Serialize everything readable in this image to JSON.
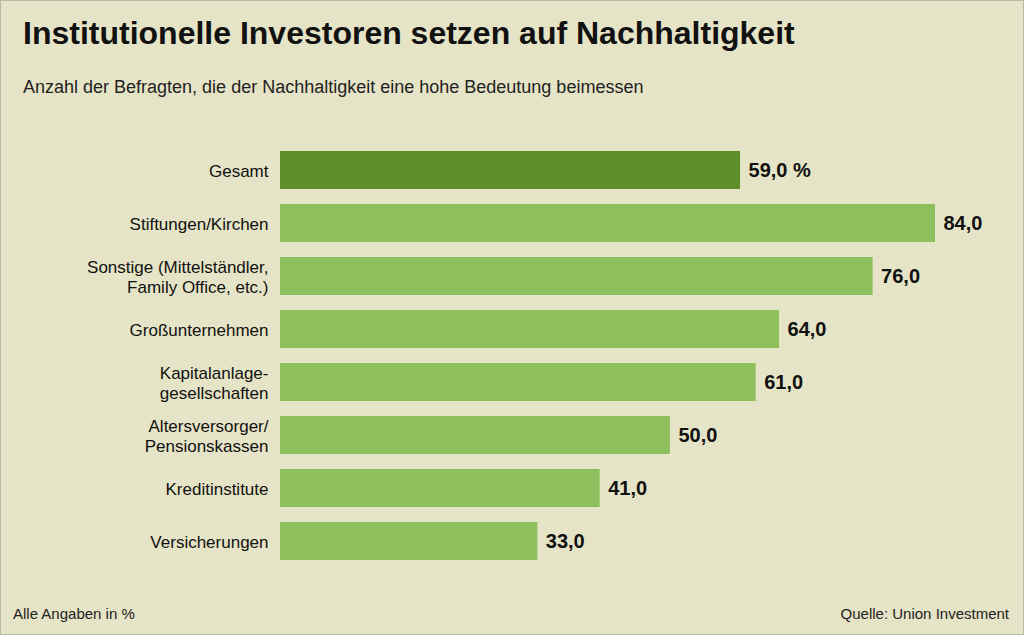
{
  "chart_data": {
    "type": "bar",
    "orientation": "horizontal",
    "title": "Institutionelle Investoren setzen auf Nachhaltigkeit",
    "subtitle": "Anzahl der Befragten, die der Nachhaltigkeit eine hohe Bedeutung beimessen",
    "categories": [
      "Gesamt",
      "Stiftungen/Kirchen",
      "Sonstige (Mittelständler,\nFamily Office, etc.)",
      "Großunternehmen",
      "Kapitalanlage-\ngesellschaften",
      "Altersversorger/\nPensionskassen",
      "Kreditinstitute",
      "Versicherungen"
    ],
    "values": [
      59,
      84,
      76,
      64,
      61,
      50,
      41,
      33
    ],
    "value_labels": [
      "59,0 %",
      "84,0",
      "76,0",
      "64,0",
      "61,0",
      "50,0",
      "41,0",
      "33,0"
    ],
    "data_labels": true,
    "colors": [
      "#5e8e2c",
      "#8dbf5c",
      "#8dbf5c",
      "#8dbf5c",
      "#8dbf5c",
      "#8dbf5c",
      "#8dbf5c",
      "#8dbf5c"
    ],
    "xlim": [
      0,
      84
    ],
    "tick_labels": "y",
    "grid": false,
    "note": "Alle Angaben in %",
    "source": "Quelle: Union Investment"
  }
}
